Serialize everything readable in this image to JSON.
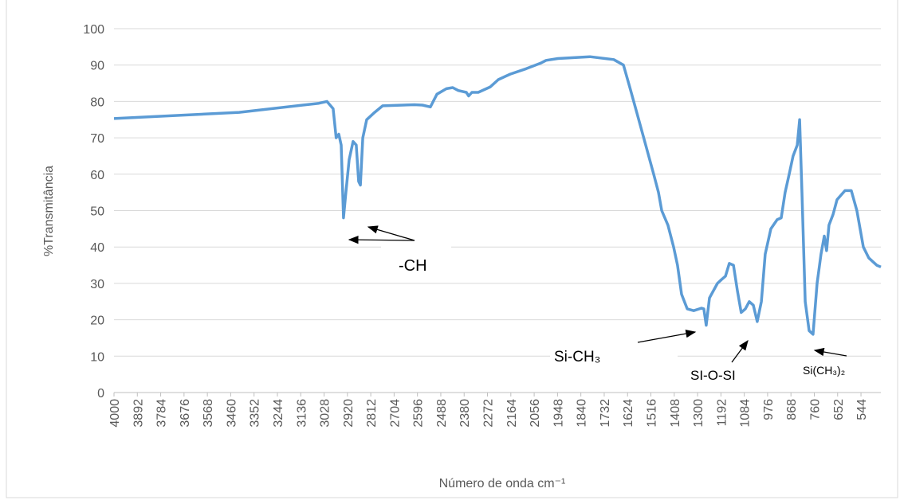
{
  "chart_data": {
    "type": "line",
    "x_label": "Número de onda cm⁻¹",
    "y_label": "%Transmitância",
    "xlim": [
      4000,
      452
    ],
    "ylim": [
      0,
      100
    ],
    "xticks": [
      4000,
      3892,
      3784,
      3676,
      3568,
      3460,
      3352,
      3244,
      3136,
      3028,
      2920,
      2812,
      2704,
      2596,
      2488,
      2380,
      2272,
      2164,
      2056,
      1948,
      1840,
      1732,
      1624,
      1516,
      1408,
      1300,
      1192,
      1084,
      976,
      868,
      760,
      652,
      544
    ],
    "yticks": [
      0,
      10,
      20,
      30,
      40,
      50,
      60,
      70,
      80,
      90,
      100
    ],
    "grid": true,
    "color": "#5b9bd5",
    "x": [
      4000,
      3421,
      3052,
      3015,
      2986,
      2972,
      2960,
      2949,
      2938,
      2927,
      2912,
      2894,
      2879,
      2868,
      2860,
      2849,
      2831,
      2794,
      2757,
      2610,
      2573,
      2536,
      2506,
      2462,
      2433,
      2407,
      2370,
      2359,
      2344,
      2315,
      2259,
      2222,
      2167,
      2093,
      2027,
      2001,
      1946,
      1798,
      1688,
      1643,
      1614,
      1577,
      1540,
      1503,
      1481,
      1466,
      1437,
      1411,
      1393,
      1374,
      1348,
      1318,
      1282,
      1271,
      1260,
      1245,
      1208,
      1190,
      1171,
      1153,
      1134,
      1116,
      1098,
      1079,
      1061,
      1042,
      1024,
      1005,
      987,
      961,
      932,
      913,
      895,
      876,
      858,
      839,
      828,
      817,
      802,
      784,
      766,
      747,
      729,
      714,
      703,
      692,
      673,
      655,
      618,
      589,
      563,
      533,
      508,
      471,
      452
    ],
    "values": [
      75.3,
      77,
      79.5,
      80,
      78,
      70,
      71,
      68,
      48,
      55,
      64,
      69,
      68,
      58,
      57,
      70,
      75,
      77,
      78.8,
      79.1,
      79,
      78.5,
      82,
      83.5,
      83.8,
      83,
      82.5,
      81.5,
      82.5,
      82.5,
      84,
      86,
      87.5,
      89,
      90.5,
      91.3,
      91.8,
      92.3,
      91.5,
      90,
      84,
      76,
      68,
      60,
      55,
      50,
      46,
      40,
      35,
      27,
      23,
      22.5,
      23.2,
      23,
      18.5,
      26,
      30,
      31,
      32,
      35.5,
      35,
      28,
      22,
      23,
      25,
      24,
      19.5,
      25,
      38,
      45,
      47.5,
      48,
      55,
      60,
      65,
      68,
      75,
      55,
      25,
      17,
      16,
      30,
      38,
      43,
      39,
      46,
      49,
      53,
      55.5,
      55.5,
      50,
      40,
      37,
      35,
      34.5
    ],
    "annotations": [
      "-CH",
      "Si-CH₃",
      "SI-O-SI",
      "Si(CH₃)₂"
    ]
  }
}
